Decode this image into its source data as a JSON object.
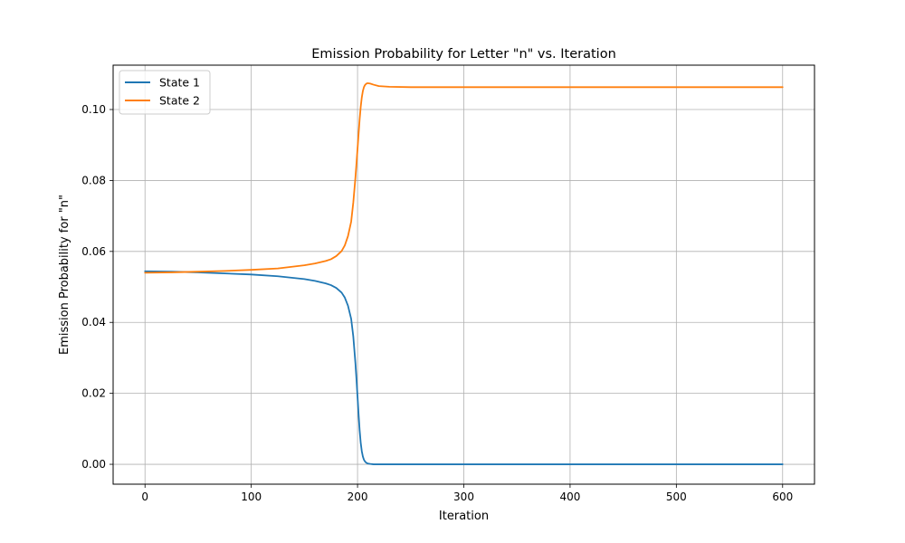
{
  "chart_data": {
    "type": "line",
    "title": "Emission Probability for Letter \"n\" vs. Iteration",
    "xlabel": "Iteration",
    "ylabel": "Emission Probability for \"n\"",
    "xlim": [
      -30,
      630
    ],
    "ylim": [
      -0.0056,
      0.1125
    ],
    "x_ticks": [
      0,
      100,
      200,
      300,
      400,
      500,
      600
    ],
    "x_tick_labels": [
      "0",
      "100",
      "200",
      "300",
      "400",
      "500",
      "600"
    ],
    "y_ticks": [
      0.0,
      0.02,
      0.04,
      0.06,
      0.08,
      0.1
    ],
    "y_tick_labels": [
      "0.00",
      "0.02",
      "0.04",
      "0.06",
      "0.08",
      "0.10"
    ],
    "grid": true,
    "legend_position": "top-left",
    "series": [
      {
        "name": "State 1",
        "color": "#1f77b4",
        "x": [
          0,
          25,
          50,
          75,
          100,
          125,
          150,
          160,
          170,
          175,
          180,
          185,
          188,
          191,
          194,
          196,
          198,
          199,
          200,
          201,
          202,
          203,
          204,
          205,
          206,
          207,
          208,
          209,
          210,
          212,
          215,
          220,
          250,
          300,
          400,
          500,
          600
        ],
        "values": [
          0.0544,
          0.0543,
          0.0541,
          0.0538,
          0.0535,
          0.053,
          0.0522,
          0.0517,
          0.051,
          0.0505,
          0.0497,
          0.0484,
          0.047,
          0.0447,
          0.041,
          0.036,
          0.0285,
          0.024,
          0.019,
          0.014,
          0.0095,
          0.006,
          0.0037,
          0.0022,
          0.0013,
          0.0008,
          0.0005,
          0.0003,
          0.0002,
          0.0001,
          0.0,
          0.0,
          0.0,
          0.0,
          0.0,
          0.0,
          0.0
        ]
      },
      {
        "name": "State 2",
        "color": "#ff7f0e",
        "x": [
          0,
          25,
          50,
          75,
          100,
          125,
          150,
          160,
          170,
          175,
          180,
          185,
          188,
          191,
          194,
          196,
          198,
          199,
          200,
          201,
          202,
          203,
          204,
          205,
          206,
          207,
          208,
          209,
          210,
          212,
          215,
          220,
          230,
          250,
          300,
          400,
          500,
          600
        ],
        "values": [
          0.054,
          0.0541,
          0.0543,
          0.0545,
          0.0548,
          0.0552,
          0.0561,
          0.0566,
          0.0573,
          0.0578,
          0.0587,
          0.0601,
          0.0617,
          0.0643,
          0.0684,
          0.0738,
          0.0808,
          0.0848,
          0.089,
          0.0932,
          0.0973,
          0.1008,
          0.1034,
          0.1052,
          0.1063,
          0.1069,
          0.1072,
          0.1074,
          0.1074,
          0.1073,
          0.107,
          0.1066,
          0.1064,
          0.1063,
          0.1063,
          0.1063,
          0.1063,
          0.1063
        ]
      }
    ]
  }
}
